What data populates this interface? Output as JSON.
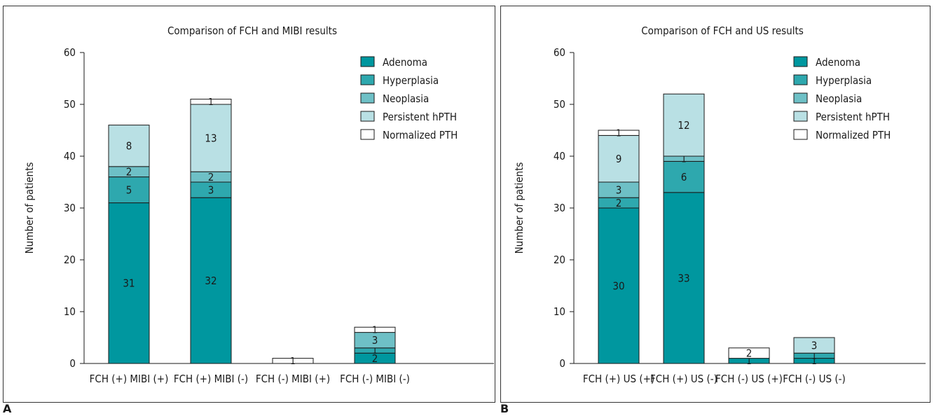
{
  "panels": [
    {
      "letter": "A"
    },
    {
      "letter": "B"
    }
  ],
  "colors": {
    "Adenoma": "#00979f",
    "Hyperplasia": "#2ea8ae",
    "Neoplasia": "#6ec0c6",
    "Persistent hPTH": "#b9e0e4",
    "Normalized PTH": "#ffffff"
  },
  "chart_data": [
    {
      "type": "bar",
      "stacked": true,
      "title": "Comparison of FCH and MIBI results",
      "xlabel": "",
      "ylabel": "Number of patients",
      "ylim": [
        0,
        60
      ],
      "yticks": [
        0,
        10,
        20,
        30,
        40,
        50,
        60
      ],
      "grid": false,
      "legend_position": "top-right",
      "categories": [
        "FCH (+) MIBI (+)",
        "FCH (+) MIBI (-)",
        "FCH (-) MIBI (+)",
        "FCH (-) MIBI (-)"
      ],
      "series": [
        {
          "name": "Adenoma",
          "values": [
            31,
            32,
            0,
            2
          ]
        },
        {
          "name": "Hyperplasia",
          "values": [
            5,
            3,
            0,
            1
          ]
        },
        {
          "name": "Neoplasia",
          "values": [
            2,
            2,
            0,
            3
          ]
        },
        {
          "name": "Persistent hPTH",
          "values": [
            8,
            13,
            0,
            0
          ]
        },
        {
          "name": "Normalized PTH",
          "values": [
            0,
            1,
            1,
            1
          ]
        }
      ]
    },
    {
      "type": "bar",
      "stacked": true,
      "title": "Comparison of FCH and US results",
      "xlabel": "",
      "ylabel": "Number of patients",
      "ylim": [
        0,
        60
      ],
      "yticks": [
        0,
        10,
        20,
        30,
        40,
        50,
        60
      ],
      "grid": false,
      "legend_position": "top-right",
      "categories": [
        "FCH (+) US (+)",
        "FCH (+) US (-)",
        "FCH (-) US (+)",
        "FCH (-) US (-)"
      ],
      "series": [
        {
          "name": "Adenoma",
          "values": [
            30,
            33,
            1,
            1
          ]
        },
        {
          "name": "Hyperplasia",
          "values": [
            2,
            6,
            0,
            1
          ]
        },
        {
          "name": "Neoplasia",
          "values": [
            3,
            1,
            0,
            0
          ]
        },
        {
          "name": "Persistent hPTH",
          "values": [
            9,
            12,
            0,
            3
          ]
        },
        {
          "name": "Normalized PTH",
          "values": [
            1,
            0,
            2,
            0
          ]
        }
      ]
    }
  ]
}
